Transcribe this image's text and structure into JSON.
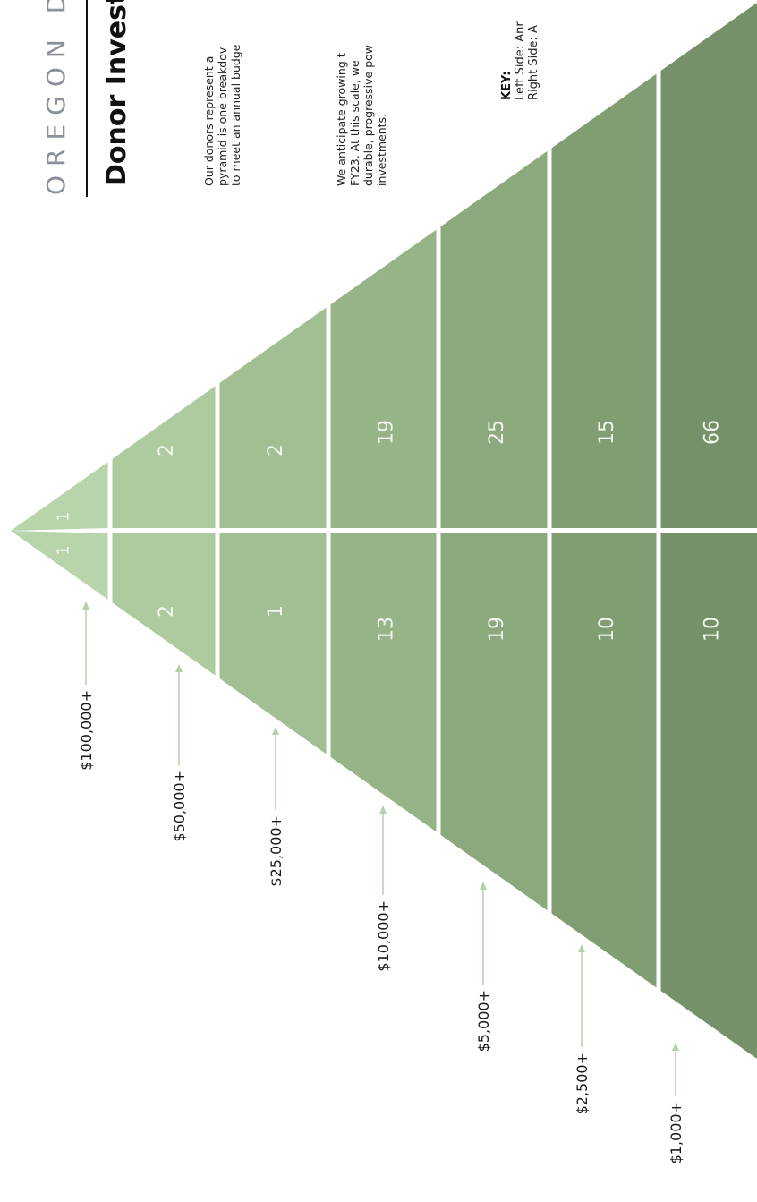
{
  "header": {
    "org": "OREGON D",
    "title": "Donor Invest"
  },
  "intro": [
    "Our donors represent a",
    "pyramid is one breakdov",
    "to meet an annual budge"
  ],
  "growth": [
    "We anticipate growing t",
    "FY23. At this scale, we",
    "durable, progressive pow",
    "investments."
  ],
  "key": {
    "heading": "KEY:",
    "left": "Left Side: Anr",
    "right": "Right Side: A"
  },
  "tiers": [
    {
      "level": "$100,000+",
      "left": "1",
      "right": "1",
      "color": "#b8d4aa"
    },
    {
      "level": "$50,000+",
      "left": "2",
      "right": "2",
      "color": "#aecb9f"
    },
    {
      "level": "$25,000+",
      "left": "1",
      "right": "2",
      "color": "#a2bf93"
    },
    {
      "level": "$10,000+",
      "left": "13",
      "right": "19",
      "color": "#97b488"
    },
    {
      "level": "$5,000+",
      "left": "19",
      "right": "25",
      "color": "#8ca97d"
    },
    {
      "level": "$2,500+",
      "left": "10",
      "right": "15",
      "color": "#819e73"
    },
    {
      "level": "$1,000+",
      "left": "10",
      "right": "66",
      "color": "#769169"
    }
  ],
  "arrow_color": "#b5cfa8"
}
